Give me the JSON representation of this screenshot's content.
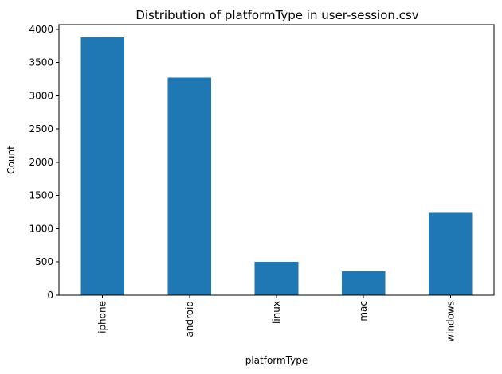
{
  "chart_data": {
    "type": "bar",
    "title": "Distribution of platformType in user-session.csv",
    "xlabel": "platformType",
    "ylabel": "Count",
    "categories": [
      "iphone",
      "android",
      "linux",
      "mac",
      "windows"
    ],
    "values": [
      3880,
      3275,
      505,
      360,
      1240
    ],
    "ylim": [
      0,
      4070
    ],
    "yticks": [
      0,
      500,
      1000,
      1500,
      2000,
      2500,
      3000,
      3500,
      4000
    ],
    "bar_color": "#1f77b4",
    "grid": false,
    "legend": "none",
    "xtick_rotation": "vertical"
  }
}
